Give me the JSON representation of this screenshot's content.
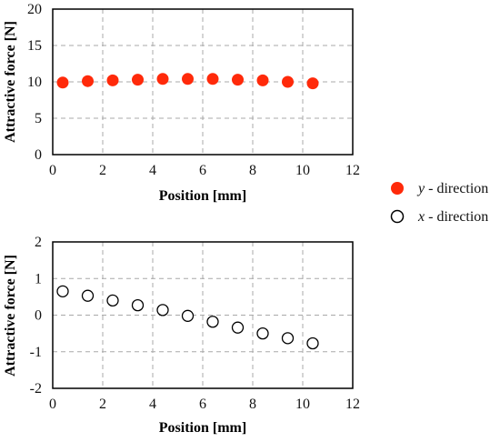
{
  "chart_data": [
    {
      "type": "scatter",
      "xlabel": "Position [mm]",
      "ylabel": "Attractive force [N]",
      "xlim": [
        0,
        12
      ],
      "ylim": [
        0,
        20
      ],
      "xticks": [
        "0",
        "2",
        "4",
        "6",
        "8",
        "10",
        "12"
      ],
      "yticks": [
        "0",
        "5",
        "10",
        "15",
        "20"
      ],
      "grid": true,
      "series": [
        {
          "name": "y - direction",
          "color": "#ff2a0a",
          "marker": "filled-circle",
          "x": [
            0.4,
            1.4,
            2.4,
            3.4,
            4.4,
            5.4,
            6.4,
            7.4,
            8.4,
            9.4,
            10.4
          ],
          "y": [
            9.9,
            10.1,
            10.2,
            10.3,
            10.4,
            10.4,
            10.4,
            10.3,
            10.2,
            10.0,
            9.8
          ]
        }
      ]
    },
    {
      "type": "scatter",
      "xlabel": "Position [mm]",
      "ylabel": "Attractive force [N]",
      "xlim": [
        0,
        12
      ],
      "ylim": [
        -2,
        2
      ],
      "xticks": [
        "0",
        "2",
        "4",
        "6",
        "8",
        "10",
        "12"
      ],
      "yticks": [
        "-2",
        "-1",
        "0",
        "1",
        "2"
      ],
      "grid": true,
      "series": [
        {
          "name": "x - direction",
          "color": "#000000",
          "marker": "open-circle",
          "x": [
            0.4,
            1.4,
            2.4,
            3.4,
            4.4,
            5.4,
            6.4,
            7.4,
            8.4,
            9.4,
            10.4
          ],
          "y": [
            0.65,
            0.53,
            0.4,
            0.27,
            0.14,
            -0.02,
            -0.18,
            -0.34,
            -0.5,
            -0.63,
            -0.77
          ]
        }
      ]
    }
  ],
  "legend": [
    {
      "italic": "y",
      "rest": " - direction",
      "marker": "filled-circle",
      "color": "#ff2a0a"
    },
    {
      "italic": "x",
      "rest": " - direction",
      "marker": "open-circle",
      "color": "#000000"
    }
  ]
}
